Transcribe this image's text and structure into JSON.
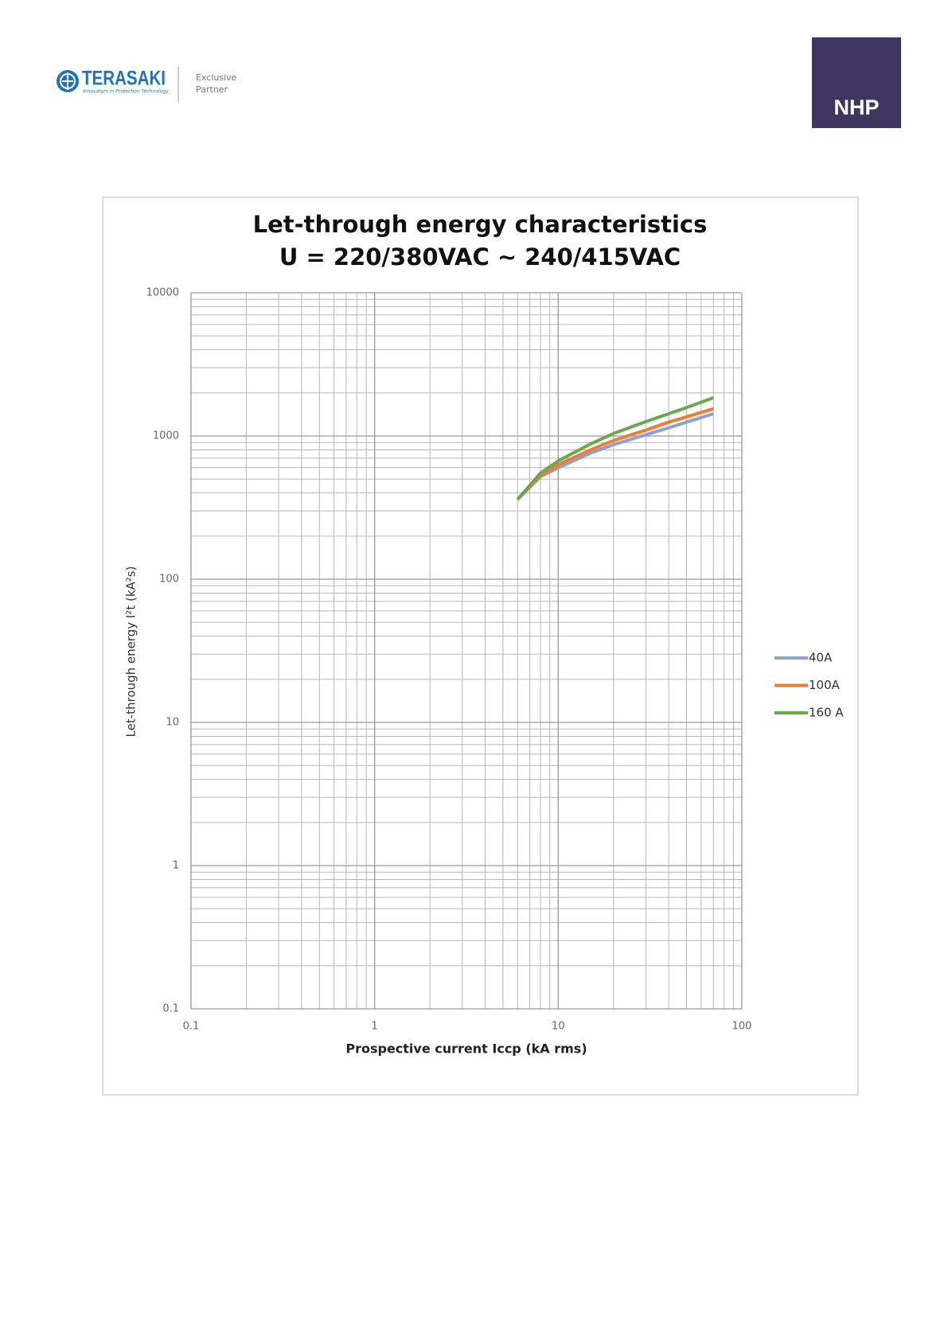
{
  "header": {
    "brand": "TERASAKI",
    "tagline": "Innovators in Protection Technology",
    "partner": [
      "Exclusive",
      "Partner"
    ],
    "partner_logo": "NHP"
  },
  "chart_data": {
    "type": "line",
    "title": "Let-through energy characteristics",
    "subtitle": "U = 220/380VAC ~ 240/415VAC",
    "x_label": "Prospective current Iccp (kA rms)",
    "y_label": "Let-through energy I²t (kA²s)",
    "x": [
      6,
      8,
      10,
      15,
      20,
      30,
      40,
      50,
      70
    ],
    "series": [
      {
        "name": "40A",
        "color": "#8e9fd2",
        "values": [
          360,
          520,
          600,
          760,
          870,
          1020,
          1140,
          1250,
          1430
        ]
      },
      {
        "name": "100A",
        "color": "#ed7d31",
        "values": [
          360,
          530,
          630,
          800,
          930,
          1100,
          1250,
          1360,
          1550
        ]
      },
      {
        "name": "160 A",
        "color": "#6aa84f",
        "values": [
          360,
          550,
          670,
          880,
          1040,
          1260,
          1430,
          1580,
          1850
        ]
      }
    ],
    "xlim": [
      0.1,
      100
    ],
    "ylim": [
      0.1,
      10000
    ],
    "xticks": [
      0.1,
      1,
      10,
      100
    ],
    "yticks": [
      0.1,
      1,
      10,
      100,
      1000,
      10000
    ],
    "x_log": true,
    "y_log": true,
    "grid": true,
    "minor_grid": true,
    "legend": "right"
  }
}
